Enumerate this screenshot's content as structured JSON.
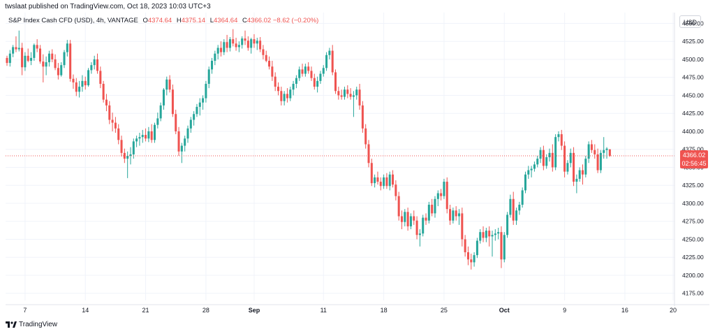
{
  "header": {
    "published_text": "twslaat published on TradingView.com, Oct 18, 2023 10:03 UTC+3"
  },
  "legend": {
    "symbol": "S&P Index Cash CFD (USD), 4h, VANTAGE",
    "open_label": "O",
    "open": "4374.64",
    "high_label": "H",
    "high": "4375.14",
    "low_label": "L",
    "low": "4364.64",
    "close_label": "C",
    "close": "4366.02",
    "change": "−8.62 (−0.20%)"
  },
  "currency_button": "USD",
  "last_price": {
    "value": "4366.02",
    "countdown": "02:56:45"
  },
  "footer": {
    "brand": "TradingView"
  },
  "colors": {
    "up": "#26a69a",
    "down": "#ef5350",
    "grid": "#f0f3fa",
    "axis_text": "#131722"
  },
  "chart_data": {
    "type": "candlestick",
    "title": "S&P Index Cash CFD (USD), 4h, VANTAGE",
    "ylim": [
      4165,
      4565
    ],
    "y_ticks": [
      4175,
      4200,
      4225,
      4250,
      4275,
      4300,
      4325,
      4350,
      4375,
      4400,
      4425,
      4450,
      4475,
      4500,
      4525,
      4550
    ],
    "x_ticks": [
      {
        "label": "7",
        "index": 6
      },
      {
        "label": "14",
        "index": 26
      },
      {
        "label": "21",
        "index": 46
      },
      {
        "label": "28",
        "index": 66
      },
      {
        "label": "Sep",
        "index": 82
      },
      {
        "label": "11",
        "index": 105
      },
      {
        "label": "18",
        "index": 125
      },
      {
        "label": "25",
        "index": 145
      },
      {
        "label": "Oct",
        "index": 165
      },
      {
        "label": "9",
        "index": 185
      },
      {
        "label": "16",
        "index": 205
      },
      {
        "label": "20",
        "index": 221
      }
    ],
    "x_range": [
      0,
      221
    ],
    "last_price": 4366.02,
    "candles": [
      [
        4502,
        4505,
        4491,
        4495
      ],
      [
        4495,
        4513,
        4490,
        4508
      ],
      [
        4508,
        4520,
        4503,
        4517
      ],
      [
        4517,
        4532,
        4510,
        4514
      ],
      [
        4514,
        4540,
        4511,
        4516
      ],
      [
        4516,
        4523,
        4478,
        4489
      ],
      [
        4489,
        4510,
        4484,
        4505
      ],
      [
        4505,
        4515,
        4496,
        4498
      ],
      [
        4498,
        4510,
        4492,
        4502
      ],
      [
        4502,
        4522,
        4498,
        4520
      ],
      [
        4520,
        4528,
        4510,
        4515
      ],
      [
        4515,
        4520,
        4494,
        4497
      ],
      [
        4497,
        4507,
        4468,
        4490
      ],
      [
        4490,
        4504,
        4478,
        4496
      ],
      [
        4496,
        4512,
        4490,
        4508
      ],
      [
        4508,
        4514,
        4496,
        4500
      ],
      [
        4500,
        4507,
        4485,
        4488
      ],
      [
        4488,
        4495,
        4472,
        4478
      ],
      [
        4478,
        4496,
        4476,
        4492
      ],
      [
        4492,
        4513,
        4488,
        4510
      ],
      [
        4510,
        4527,
        4504,
        4522
      ],
      [
        4522,
        4527,
        4469,
        4473
      ],
      [
        4473,
        4479,
        4459,
        4468
      ],
      [
        4468,
        4474,
        4449,
        4455
      ],
      [
        4455,
        4470,
        4447,
        4462
      ],
      [
        4462,
        4478,
        4455,
        4470
      ],
      [
        4470,
        4476,
        4458,
        4464
      ],
      [
        4464,
        4488,
        4462,
        4485
      ],
      [
        4485,
        4496,
        4480,
        4492
      ],
      [
        4492,
        4505,
        4486,
        4500
      ],
      [
        4500,
        4508,
        4480,
        4484
      ],
      [
        4484,
        4490,
        4460,
        4466
      ],
      [
        4466,
        4470,
        4440,
        4444
      ],
      [
        4444,
        4452,
        4428,
        4436
      ],
      [
        4436,
        4442,
        4410,
        4416
      ],
      [
        4416,
        4426,
        4400,
        4412
      ],
      [
        4412,
        4420,
        4398,
        4404
      ],
      [
        4404,
        4410,
        4382,
        4388
      ],
      [
        4388,
        4394,
        4365,
        4370
      ],
      [
        4370,
        4376,
        4356,
        4362
      ],
      [
        4362,
        4372,
        4335,
        4366
      ],
      [
        4366,
        4378,
        4354,
        4368
      ],
      [
        4368,
        4390,
        4362,
        4386
      ],
      [
        4386,
        4394,
        4378,
        4390
      ],
      [
        4390,
        4398,
        4380,
        4392
      ],
      [
        4392,
        4402,
        4384,
        4395
      ],
      [
        4395,
        4404,
        4386,
        4390
      ],
      [
        4390,
        4406,
        4385,
        4400
      ],
      [
        4400,
        4410,
        4384,
        4388
      ],
      [
        4388,
        4412,
        4384,
        4409
      ],
      [
        4409,
        4426,
        4404,
        4418
      ],
      [
        4418,
        4440,
        4414,
        4436
      ],
      [
        4436,
        4460,
        4430,
        4458
      ],
      [
        4458,
        4476,
        4450,
        4472
      ],
      [
        4472,
        4478,
        4454,
        4458
      ],
      [
        4458,
        4465,
        4420,
        4424
      ],
      [
        4424,
        4430,
        4396,
        4400
      ],
      [
        4400,
        4406,
        4366,
        4372
      ],
      [
        4372,
        4384,
        4356,
        4380
      ],
      [
        4380,
        4394,
        4372,
        4390
      ],
      [
        4390,
        4408,
        4384,
        4404
      ],
      [
        4404,
        4420,
        4398,
        4416
      ],
      [
        4416,
        4428,
        4408,
        4424
      ],
      [
        4424,
        4438,
        4420,
        4434
      ],
      [
        4434,
        4446,
        4422,
        4440
      ],
      [
        4440,
        4450,
        4430,
        4446
      ],
      [
        4446,
        4470,
        4440,
        4466
      ],
      [
        4466,
        4490,
        4460,
        4486
      ],
      [
        4486,
        4502,
        4480,
        4498
      ],
      [
        4498,
        4512,
        4492,
        4508
      ],
      [
        4508,
        4520,
        4500,
        4516
      ],
      [
        4516,
        4525,
        4504,
        4510
      ],
      [
        4510,
        4528,
        4506,
        4524
      ],
      [
        4524,
        4534,
        4510,
        4516
      ],
      [
        4516,
        4531,
        4511,
        4528
      ],
      [
        4528,
        4542,
        4518,
        4522
      ],
      [
        4522,
        4530,
        4512,
        4517
      ],
      [
        4517,
        4525,
        4510,
        4520
      ],
      [
        4520,
        4532,
        4515,
        4529
      ],
      [
        4529,
        4540,
        4520,
        4526
      ],
      [
        4526,
        4532,
        4512,
        4516
      ],
      [
        4516,
        4530,
        4508,
        4528
      ],
      [
        4528,
        4535,
        4516,
        4522
      ],
      [
        4522,
        4530,
        4513,
        4526
      ],
      [
        4526,
        4531,
        4510,
        4514
      ],
      [
        4514,
        4520,
        4500,
        4506
      ],
      [
        4506,
        4512,
        4496,
        4498
      ],
      [
        4498,
        4504,
        4486,
        4490
      ],
      [
        4490,
        4498,
        4470,
        4476
      ],
      [
        4476,
        4482,
        4456,
        4462
      ],
      [
        4462,
        4468,
        4450,
        4456
      ],
      [
        4456,
        4462,
        4436,
        4442
      ],
      [
        4442,
        4456,
        4436,
        4452
      ],
      [
        4452,
        4460,
        4440,
        4446
      ],
      [
        4446,
        4462,
        4442,
        4458
      ],
      [
        4458,
        4470,
        4450,
        4466
      ],
      [
        4466,
        4478,
        4460,
        4474
      ],
      [
        4474,
        4490,
        4470,
        4486
      ],
      [
        4486,
        4494,
        4476,
        4480
      ],
      [
        4480,
        4494,
        4476,
        4490
      ],
      [
        4490,
        4496,
        4480,
        4484
      ],
      [
        4484,
        4490,
        4470,
        4474
      ],
      [
        4474,
        4480,
        4458,
        4462
      ],
      [
        4462,
        4476,
        4454,
        4470
      ],
      [
        4470,
        4484,
        4466,
        4480
      ],
      [
        4480,
        4492,
        4476,
        4488
      ],
      [
        4488,
        4510,
        4484,
        4506
      ],
      [
        4506,
        4516,
        4500,
        4512
      ],
      [
        4512,
        4520,
        4478,
        4482
      ],
      [
        4482,
        4486,
        4452,
        4456
      ],
      [
        4456,
        4462,
        4444,
        4450
      ],
      [
        4450,
        4458,
        4444,
        4448
      ],
      [
        4448,
        4462,
        4444,
        4458
      ],
      [
        4458,
        4464,
        4446,
        4452
      ],
      [
        4452,
        4460,
        4444,
        4448
      ],
      [
        4448,
        4456,
        4420,
        4450
      ],
      [
        4450,
        4462,
        4444,
        4458
      ],
      [
        4458,
        4466,
        4430,
        4436
      ],
      [
        4436,
        4442,
        4398,
        4404
      ],
      [
        4404,
        4410,
        4376,
        4382
      ],
      [
        4382,
        4388,
        4350,
        4356
      ],
      [
        4356,
        4362,
        4324,
        4328
      ],
      [
        4328,
        4340,
        4322,
        4336
      ],
      [
        4336,
        4344,
        4326,
        4330
      ],
      [
        4330,
        4336,
        4318,
        4324
      ],
      [
        4324,
        4340,
        4320,
        4336
      ],
      [
        4336,
        4342,
        4320,
        4324
      ],
      [
        4324,
        4344,
        4318,
        4340
      ],
      [
        4340,
        4346,
        4322,
        4326
      ],
      [
        4326,
        4332,
        4304,
        4310
      ],
      [
        4310,
        4316,
        4276,
        4282
      ],
      [
        4282,
        4290,
        4264,
        4274
      ],
      [
        4274,
        4292,
        4268,
        4288
      ],
      [
        4288,
        4294,
        4262,
        4268
      ],
      [
        4268,
        4286,
        4264,
        4282
      ],
      [
        4282,
        4290,
        4270,
        4276
      ],
      [
        4276,
        4282,
        4250,
        4256
      ],
      [
        4256,
        4264,
        4240,
        4258
      ],
      [
        4258,
        4284,
        4254,
        4280
      ],
      [
        4280,
        4286,
        4270,
        4276
      ],
      [
        4276,
        4302,
        4272,
        4298
      ],
      [
        4298,
        4306,
        4282,
        4286
      ],
      [
        4286,
        4310,
        4280,
        4306
      ],
      [
        4306,
        4318,
        4296,
        4314
      ],
      [
        4314,
        4320,
        4304,
        4310
      ],
      [
        4310,
        4334,
        4306,
        4330
      ],
      [
        4330,
        4336,
        4286,
        4292
      ],
      [
        4292,
        4298,
        4270,
        4276
      ],
      [
        4276,
        4294,
        4272,
        4290
      ],
      [
        4290,
        4296,
        4276,
        4282
      ],
      [
        4282,
        4292,
        4270,
        4286
      ],
      [
        4286,
        4294,
        4240,
        4250
      ],
      [
        4250,
        4256,
        4226,
        4232
      ],
      [
        4232,
        4240,
        4214,
        4222
      ],
      [
        4222,
        4230,
        4208,
        4218
      ],
      [
        4218,
        4232,
        4212,
        4228
      ],
      [
        4228,
        4252,
        4224,
        4248
      ],
      [
        4248,
        4264,
        4244,
        4260
      ],
      [
        4260,
        4268,
        4246,
        4252
      ],
      [
        4252,
        4266,
        4246,
        4262
      ],
      [
        4262,
        4268,
        4240,
        4254
      ],
      [
        4254,
        4262,
        4226,
        4256
      ],
      [
        4256,
        4264,
        4248,
        4258
      ],
      [
        4258,
        4266,
        4250,
        4260
      ],
      [
        4260,
        4268,
        4210,
        4222
      ],
      [
        4222,
        4260,
        4218,
        4256
      ],
      [
        4256,
        4288,
        4252,
        4284
      ],
      [
        4284,
        4312,
        4280,
        4306
      ],
      [
        4306,
        4316,
        4270,
        4276
      ],
      [
        4276,
        4294,
        4270,
        4290
      ],
      [
        4290,
        4302,
        4284,
        4298
      ],
      [
        4298,
        4322,
        4294,
        4318
      ],
      [
        4318,
        4344,
        4314,
        4340
      ],
      [
        4340,
        4352,
        4334,
        4346
      ],
      [
        4346,
        4352,
        4336,
        4348
      ],
      [
        4348,
        4358,
        4344,
        4354
      ],
      [
        4354,
        4366,
        4350,
        4362
      ],
      [
        4362,
        4378,
        4356,
        4374
      ],
      [
        4374,
        4380,
        4346,
        4352
      ],
      [
        4352,
        4368,
        4348,
        4364
      ],
      [
        4364,
        4376,
        4358,
        4370
      ],
      [
        4370,
        4382,
        4344,
        4350
      ],
      [
        4350,
        4396,
        4346,
        4392
      ],
      [
        4392,
        4400,
        4386,
        4396
      ],
      [
        4396,
        4402,
        4374,
        4380
      ],
      [
        4380,
        4386,
        4336,
        4344
      ],
      [
        4344,
        4360,
        4340,
        4356
      ],
      [
        4356,
        4376,
        4350,
        4370
      ],
      [
        4370,
        4378,
        4324,
        4330
      ],
      [
        4330,
        4340,
        4314,
        4334
      ],
      [
        4334,
        4350,
        4330,
        4346
      ],
      [
        4346,
        4354,
        4326,
        4340
      ],
      [
        4340,
        4366,
        4336,
        4362
      ],
      [
        4362,
        4386,
        4356,
        4382
      ],
      [
        4382,
        4388,
        4370,
        4374
      ],
      [
        4374,
        4382,
        4362,
        4368
      ],
      [
        4368,
        4376,
        4342,
        4346
      ],
      [
        4346,
        4374,
        4342,
        4370
      ],
      [
        4370,
        4392,
        4362,
        4374
      ],
      [
        4374,
        4378,
        4362,
        4376
      ],
      [
        4375,
        4375.14,
        4364.64,
        4366.02
      ]
    ]
  }
}
